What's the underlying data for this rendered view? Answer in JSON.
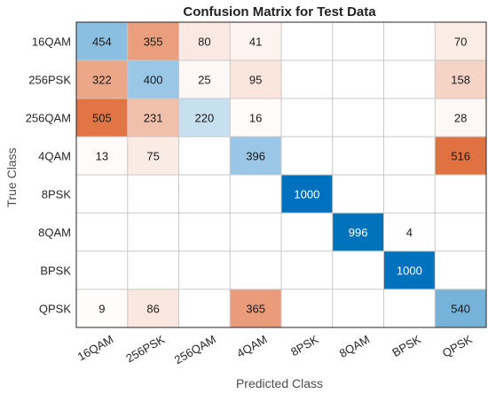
{
  "chart_data": {
    "type": "heatmap",
    "title": "Confusion Matrix for Test Data",
    "xlabel": "Predicted Class",
    "ylabel": "True Class",
    "x_categories": [
      "16QAM",
      "256PSK",
      "256QAM",
      "4QAM",
      "8PSK",
      "8QAM",
      "BPSK",
      "QPSK"
    ],
    "y_categories": [
      "16QAM",
      "256PSK",
      "256QAM",
      "4QAM",
      "8PSK",
      "8QAM",
      "BPSK",
      "QPSK"
    ],
    "values": [
      [
        454,
        355,
        80,
        41,
        0,
        0,
        0,
        70
      ],
      [
        322,
        400,
        25,
        95,
        0,
        0,
        0,
        158
      ],
      [
        505,
        231,
        220,
        16,
        0,
        0,
        0,
        28
      ],
      [
        13,
        75,
        0,
        396,
        0,
        0,
        0,
        516
      ],
      [
        0,
        0,
        0,
        0,
        1000,
        0,
        0,
        0
      ],
      [
        0,
        0,
        0,
        0,
        0,
        996,
        4,
        0
      ],
      [
        0,
        0,
        0,
        0,
        0,
        0,
        1000,
        0
      ],
      [
        9,
        86,
        0,
        365,
        0,
        0,
        0,
        540
      ]
    ],
    "zero_cells_blank": true,
    "colors": {
      "correct": "#0072bd",
      "incorrect": "#d95319",
      "background": "#ffffff",
      "grid": "#c8c8c8",
      "border": "#262626"
    }
  }
}
